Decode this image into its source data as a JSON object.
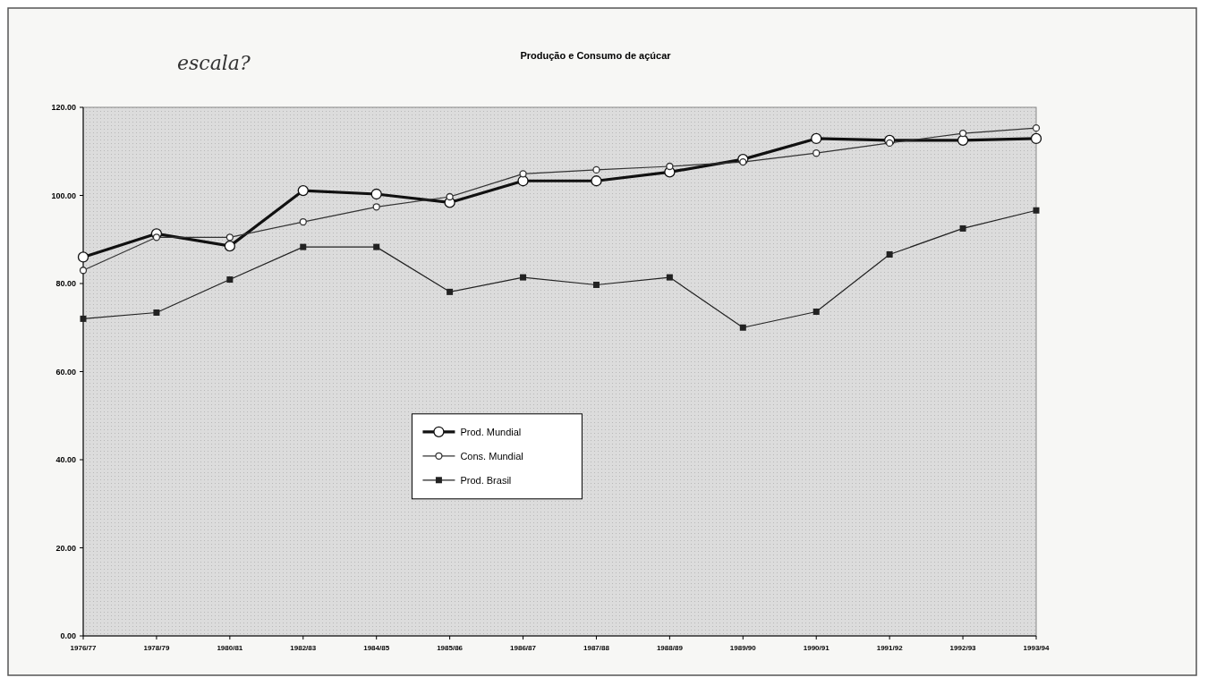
{
  "chart_data": {
    "type": "line",
    "title": "Produção e Consumo de açúcar",
    "annotations": [
      "escala?"
    ],
    "categories": [
      "1976/77",
      "1978/79",
      "1980/81",
      "1982/83",
      "1984/85",
      "1985/86",
      "1986/87",
      "1987/88",
      "1988/89",
      "1989/90",
      "1990/91",
      "1991/92",
      "1992/93",
      "1993/94"
    ],
    "series": [
      {
        "name": "Prod. Mundial",
        "color": "#111111",
        "marker": "circle",
        "values": [
          86.0,
          91.3,
          88.5,
          101.1,
          100.3,
          98.4,
          103.3,
          103.3,
          105.3,
          108.2,
          112.9,
          112.5,
          112.5,
          112.9
        ]
      },
      {
        "name": "Cons. Mundial",
        "color": "#333333",
        "marker": "circle",
        "values": [
          83.0,
          90.5,
          90.5,
          94.0,
          97.4,
          99.7,
          104.9,
          105.8,
          106.6,
          107.6,
          109.6,
          111.9,
          114.1,
          115.3
        ]
      },
      {
        "name": "Prod. Brasil",
        "color": "#222222",
        "marker": "square",
        "values": [
          72.0,
          73.4,
          80.9,
          88.3,
          88.3,
          78.1,
          81.4,
          79.7,
          81.4,
          70.0,
          73.6,
          86.6,
          92.5,
          96.6
        ]
      }
    ],
    "ylim": [
      0,
      120
    ],
    "yticks": [
      {
        "value": 0,
        "label": "0.00"
      },
      {
        "value": 20,
        "label": "20.00"
      },
      {
        "value": 40,
        "label": "40.00"
      },
      {
        "value": 60,
        "label": "60.00"
      },
      {
        "value": 80,
        "label": "80.00"
      },
      {
        "value": 100,
        "label": "100.00"
      },
      {
        "value": 120,
        "label": "120.00"
      }
    ],
    "grid": false,
    "legend": "center",
    "line_style": "solid"
  }
}
